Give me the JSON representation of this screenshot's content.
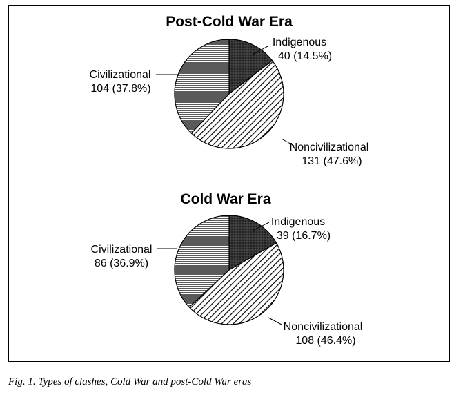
{
  "caption": "Fig. 1. Types of clashes, Cold War and post-Cold War eras",
  "chart_data": [
    {
      "type": "pie",
      "title": "Post-Cold War Era",
      "slices": [
        {
          "name": "Indigenous",
          "value": 40,
          "label": "40 (14.5%)",
          "fill": "dark-crosshatch"
        },
        {
          "name": "Noncivilizational",
          "value": 131,
          "label": "131 (47.6%)",
          "fill": "diagonal-stripes"
        },
        {
          "name": "Civilizational",
          "value": 104,
          "label": "104 (37.8%)",
          "fill": "horizontal-stripes"
        }
      ]
    },
    {
      "type": "pie",
      "title": "Cold War Era",
      "slices": [
        {
          "name": "Indigenous",
          "value": 39,
          "label": "39 (16.7%)",
          "fill": "dark-crosshatch"
        },
        {
          "name": "Noncivilizational",
          "value": 108,
          "label": "108 (46.4%)",
          "fill": "diagonal-stripes"
        },
        {
          "name": "Civilizational",
          "value": 86,
          "label": "86 (36.9%)",
          "fill": "horizontal-stripes"
        }
      ]
    }
  ]
}
